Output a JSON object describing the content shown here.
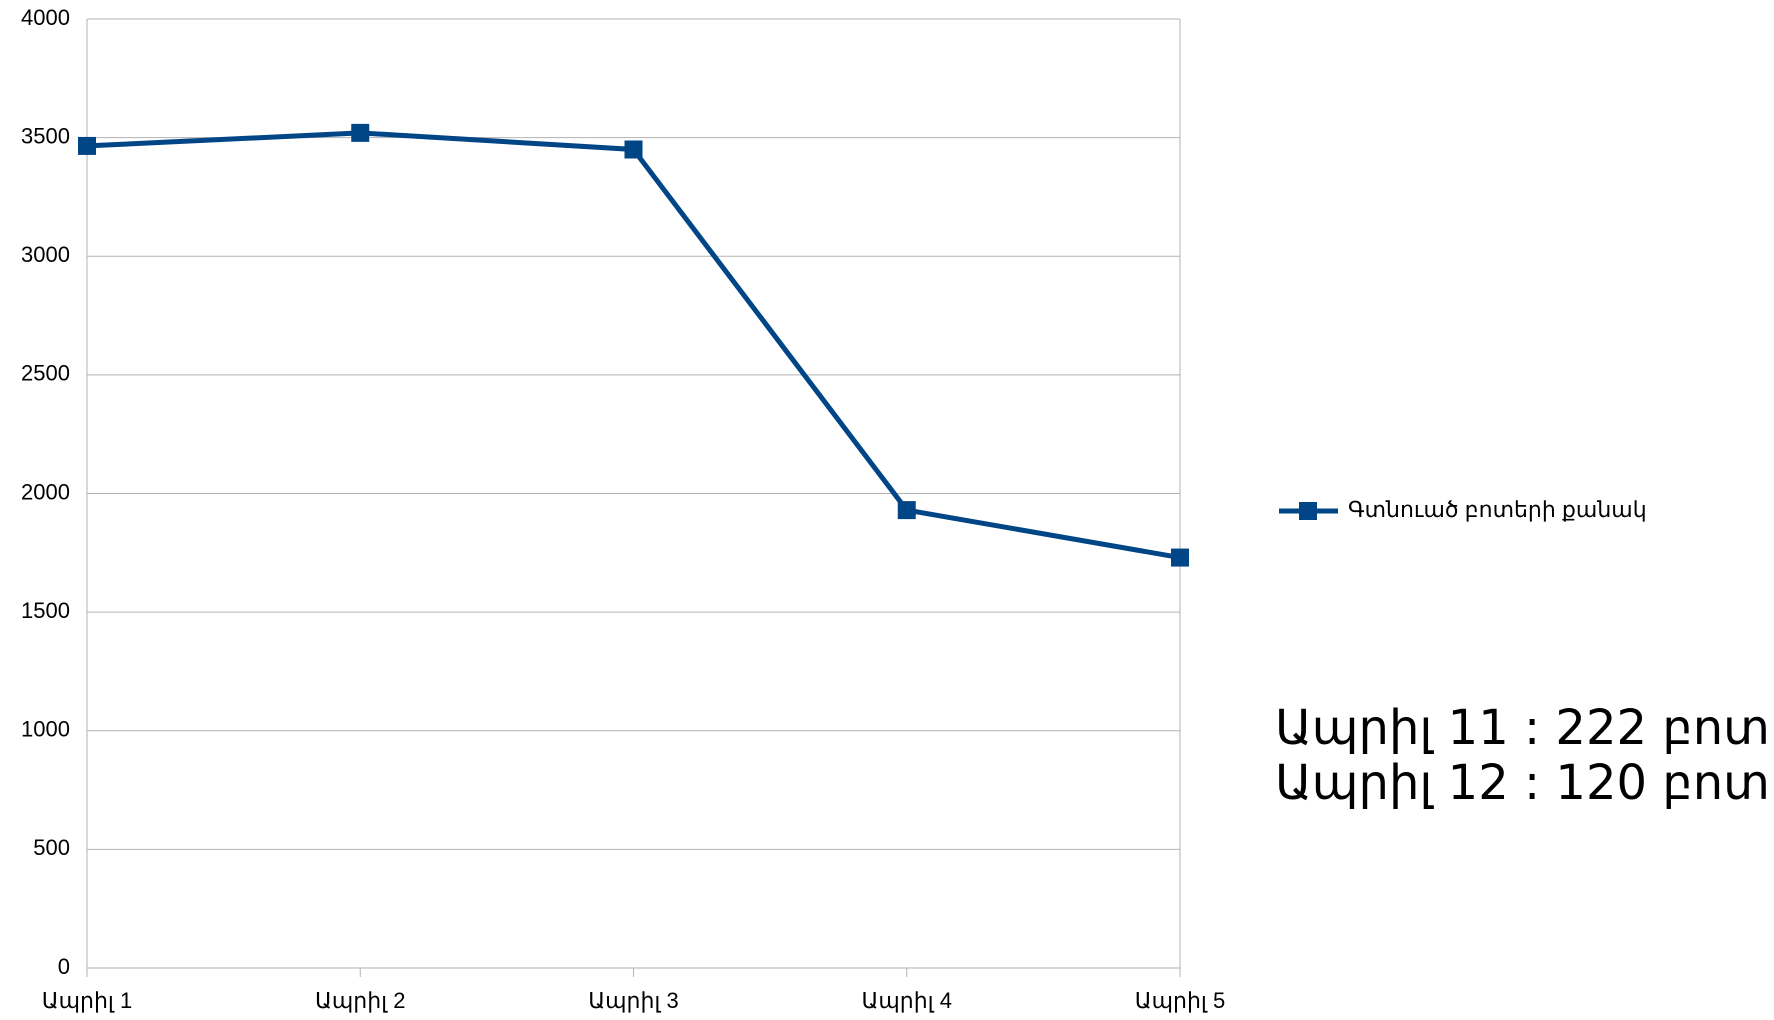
{
  "chart_data": {
    "type": "line",
    "categories": [
      "Ապրիլ 1",
      "Ապրիլ 2",
      "Ապրիլ 3",
      "Ապրիլ 4",
      "Ապրիլ 5"
    ],
    "series": [
      {
        "name": "Գտնուած բոտերի քանակ",
        "color": "#004586",
        "values": [
          3465,
          3520,
          3450,
          1930,
          1730
        ]
      }
    ],
    "ylim": [
      0,
      4000
    ],
    "yticks": [
      0,
      500,
      1000,
      1500,
      2000,
      2500,
      3000,
      3500,
      4000
    ],
    "grid": true,
    "legend": "right",
    "annotations": [
      "Ապրիլ 11 : 222 բոտ",
      "Ապրիլ 12 : 120 բոտ"
    ]
  }
}
